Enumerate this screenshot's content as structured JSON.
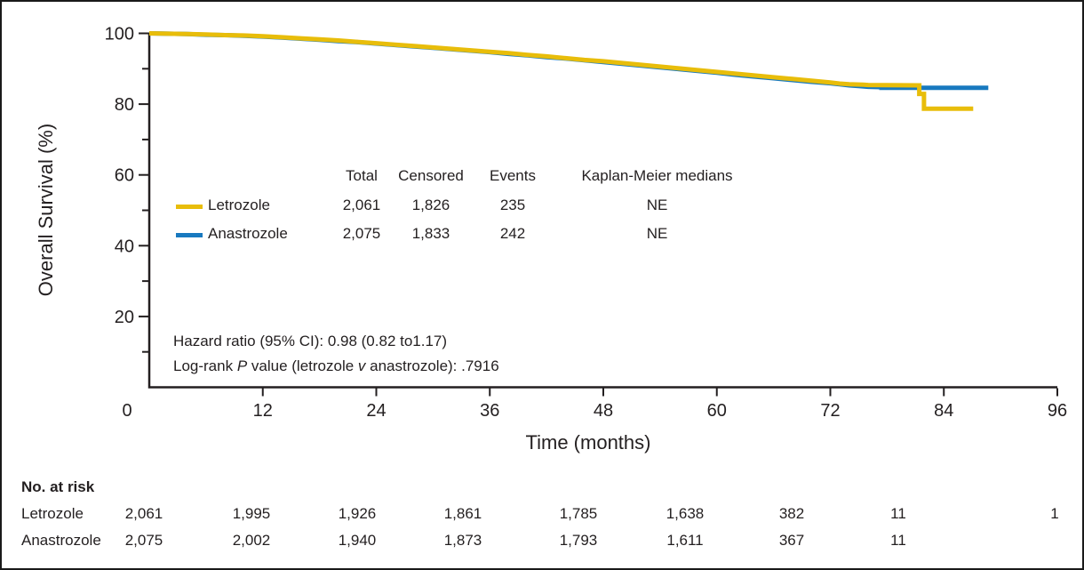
{
  "figure": {
    "background": "#ffffff",
    "border_color": "#1a1a1a"
  },
  "axes": {
    "y_label": "Overall Survival (%)",
    "x_label": "Time (months)",
    "x_ticks": [
      0,
      12,
      24,
      36,
      48,
      60,
      72,
      84,
      96
    ],
    "y_major_ticks": [
      20,
      40,
      60,
      80,
      100
    ],
    "y_minor_ticks": [
      10,
      30,
      50,
      70,
      90
    ],
    "x_range": [
      0,
      96
    ],
    "y_range": [
      0,
      100
    ]
  },
  "legend": {
    "headers": {
      "total": "Total",
      "censored": "Censored",
      "events": "Events",
      "medians": "Kaplan-Meier medians"
    },
    "rows": [
      {
        "name": "Letrozole",
        "total": "2,061",
        "censored": "1,826",
        "events": "235",
        "median": "NE",
        "color": "#E8BD0A"
      },
      {
        "name": "Anastrozole",
        "total": "2,075",
        "censored": "1,833",
        "events": "242",
        "median": "NE",
        "color": "#1879BF"
      }
    ]
  },
  "annotations": {
    "hazard_ratio": "Hazard ratio (95% CI): 0.98 (0.82 to1.17)",
    "log_rank": {
      "pre": "Log-rank ",
      "p": "P",
      "mid": " value (letrozole ",
      "v": "v",
      "post": " anastrozole): .7916"
    }
  },
  "at_risk": {
    "title": "No. at risk",
    "rows": [
      {
        "name": "Letrozole",
        "values": [
          "2,061",
          "1,995",
          "1,926",
          "1,861",
          "1,785",
          "1,638",
          "382",
          "11",
          "1"
        ]
      },
      {
        "name": "Anastrozole",
        "values": [
          "2,075",
          "2,002",
          "1,940",
          "1,873",
          "1,793",
          "1,611",
          "367",
          "11",
          ""
        ]
      }
    ]
  },
  "chart_data": {
    "type": "line",
    "title": "",
    "xlabel": "Time (months)",
    "ylabel": "Overall Survival (%)",
    "xlim": [
      0,
      96
    ],
    "ylim": [
      0,
      100
    ],
    "grid": false,
    "legend_position": "inside-left-middle",
    "series": [
      {
        "name": "Anastrozole",
        "color": "#1879BF",
        "points": [
          [
            0,
            100
          ],
          [
            2,
            99.9
          ],
          [
            4,
            99.8
          ],
          [
            6,
            99.6
          ],
          [
            8,
            99.5
          ],
          [
            10,
            99.3
          ],
          [
            12,
            99.1
          ],
          [
            14,
            98.8
          ],
          [
            16,
            98.5
          ],
          [
            18,
            98.2
          ],
          [
            20,
            97.8
          ],
          [
            22,
            97.5
          ],
          [
            24,
            97.1
          ],
          [
            26,
            96.7
          ],
          [
            28,
            96.3
          ],
          [
            30,
            95.9
          ],
          [
            32,
            95.5
          ],
          [
            34,
            95.1
          ],
          [
            36,
            94.7
          ],
          [
            38,
            94.2
          ],
          [
            40,
            93.8
          ],
          [
            42,
            93.3
          ],
          [
            44,
            92.9
          ],
          [
            46,
            92.4
          ],
          [
            48,
            91.9
          ],
          [
            50,
            91.4
          ],
          [
            52,
            90.9
          ],
          [
            54,
            90.4
          ],
          [
            56,
            89.9
          ],
          [
            58,
            89.4
          ],
          [
            60,
            88.9
          ],
          [
            62,
            88.3
          ],
          [
            64,
            87.8
          ],
          [
            66,
            87.3
          ],
          [
            68,
            86.8
          ],
          [
            70,
            86.3
          ],
          [
            72,
            85.9
          ],
          [
            73,
            85.6
          ],
          [
            74,
            85.3
          ],
          [
            75,
            85.1
          ],
          [
            76,
            84.9
          ],
          [
            77.4,
            84.8
          ],
          [
            77.4,
            84.6
          ],
          [
            88.7,
            84.6
          ]
        ]
      },
      {
        "name": "Letrozole",
        "color": "#E8BD0A",
        "points": [
          [
            0,
            100
          ],
          [
            2,
            99.9
          ],
          [
            4,
            99.8
          ],
          [
            6,
            99.7
          ],
          [
            8,
            99.5
          ],
          [
            10,
            99.4
          ],
          [
            12,
            99.2
          ],
          [
            14,
            98.9
          ],
          [
            16,
            98.6
          ],
          [
            18,
            98.3
          ],
          [
            20,
            98.0
          ],
          [
            22,
            97.6
          ],
          [
            24,
            97.2
          ],
          [
            26,
            96.8
          ],
          [
            28,
            96.4
          ],
          [
            30,
            96.0
          ],
          [
            32,
            95.6
          ],
          [
            34,
            95.2
          ],
          [
            36,
            94.8
          ],
          [
            38,
            94.4
          ],
          [
            40,
            93.9
          ],
          [
            42,
            93.5
          ],
          [
            44,
            93.0
          ],
          [
            46,
            92.5
          ],
          [
            48,
            92.1
          ],
          [
            50,
            91.6
          ],
          [
            52,
            91.1
          ],
          [
            54,
            90.6
          ],
          [
            56,
            90.1
          ],
          [
            58,
            89.6
          ],
          [
            60,
            89.1
          ],
          [
            62,
            88.6
          ],
          [
            64,
            88.1
          ],
          [
            66,
            87.6
          ],
          [
            68,
            87.1
          ],
          [
            70,
            86.6
          ],
          [
            72,
            86.1
          ],
          [
            73,
            85.8
          ],
          [
            74,
            85.6
          ],
          [
            75.5,
            85.5
          ],
          [
            76,
            85.4
          ],
          [
            81.4,
            85.3
          ],
          [
            81.4,
            82.9
          ],
          [
            81.9,
            82.9
          ],
          [
            81.9,
            78.7
          ],
          [
            87.1,
            78.7
          ]
        ]
      }
    ]
  }
}
